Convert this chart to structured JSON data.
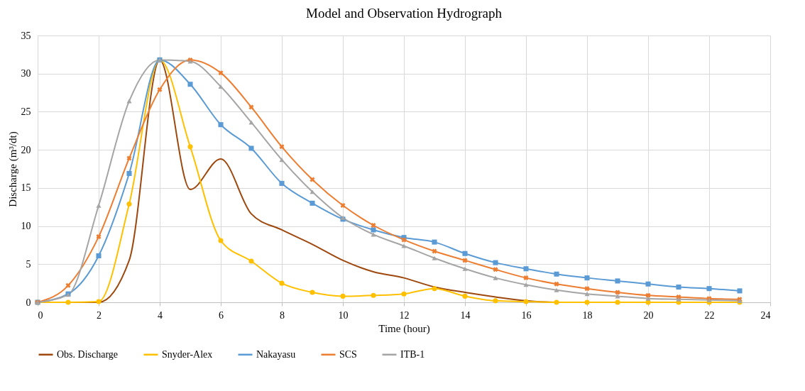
{
  "chart_data": {
    "type": "line",
    "title": "Model and Observation Hydrograph",
    "xlabel": "Time (hour)",
    "ylabel": "Discharge (m³/dt)",
    "x": [
      0,
      1,
      2,
      3,
      4,
      5,
      6,
      7,
      8,
      9,
      10,
      11,
      12,
      13,
      14,
      15,
      16,
      17,
      18,
      19,
      20,
      21,
      22,
      23
    ],
    "xlim": [
      0,
      24
    ],
    "xticks": [
      0,
      2,
      4,
      6,
      8,
      10,
      12,
      14,
      16,
      18,
      20,
      22,
      24
    ],
    "ylim": [
      0,
      35
    ],
    "yticks": [
      0,
      5,
      10,
      15,
      20,
      25,
      30,
      35
    ],
    "grid": true,
    "legend": "bottom",
    "line_style": "solid",
    "series": [
      {
        "name": "Obs. Discharge",
        "color": "#9e480e",
        "marker": "none",
        "values": [
          0,
          0,
          0,
          5.5,
          31.8,
          14.8,
          18.8,
          11.6,
          9.5,
          7.6,
          5.5,
          4.0,
          3.2,
          2.0,
          1.3,
          0.7,
          0.2,
          0,
          0,
          0,
          0,
          0,
          0,
          0
        ]
      },
      {
        "name": "Snyder-Alex",
        "color": "#ffc000",
        "marker": "circle",
        "values": [
          0,
          0,
          0.1,
          12.9,
          31.8,
          20.4,
          8.1,
          5.4,
          2.5,
          1.3,
          0.8,
          0.9,
          1.1,
          1.8,
          0.8,
          0.2,
          0.1,
          0,
          0,
          0,
          0,
          0,
          0,
          0
        ]
      },
      {
        "name": "Nakayasu",
        "color": "#5b9bd5",
        "marker": "square",
        "values": [
          0,
          1.1,
          6.1,
          16.9,
          31.8,
          28.6,
          23.3,
          20.2,
          15.6,
          13.0,
          10.9,
          9.5,
          8.5,
          7.9,
          6.4,
          5.2,
          4.4,
          3.7,
          3.2,
          2.8,
          2.4,
          2.0,
          1.8,
          1.5
        ]
      },
      {
        "name": "SCS",
        "color": "#ed7d31",
        "marker": "cross",
        "values": [
          0,
          2.2,
          8.6,
          18.9,
          27.9,
          31.8,
          30.1,
          25.6,
          20.4,
          16.1,
          12.7,
          10.1,
          8.2,
          6.7,
          5.5,
          4.3,
          3.2,
          2.4,
          1.8,
          1.3,
          0.9,
          0.7,
          0.5,
          0.4
        ]
      },
      {
        "name": "ITB-1",
        "color": "#a5a5a5",
        "marker": "triangle",
        "values": [
          0,
          1.0,
          12.7,
          26.4,
          31.8,
          31.6,
          28.3,
          23.6,
          18.7,
          14.5,
          11.1,
          8.9,
          7.4,
          5.8,
          4.4,
          3.2,
          2.3,
          1.6,
          1.1,
          0.8,
          0.5,
          0.4,
          0.3,
          0.2
        ]
      }
    ]
  }
}
